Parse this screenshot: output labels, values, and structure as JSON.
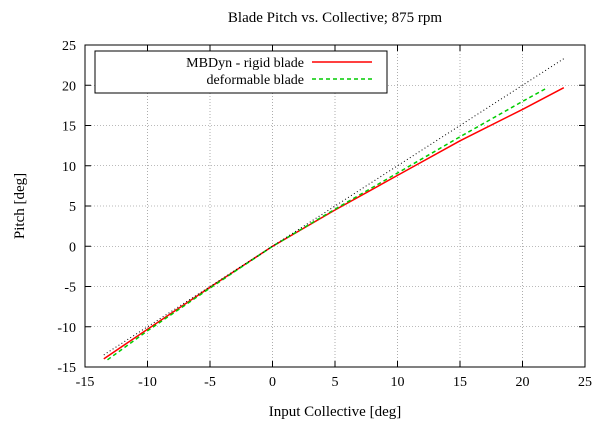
{
  "chart_data": {
    "type": "line",
    "title": "Blade Pitch vs. Collective; 875 rpm",
    "xlabel": "Input Collective [deg]",
    "ylabel": "Pitch [deg]",
    "xlim": [
      -15,
      25
    ],
    "ylim": [
      -15,
      25
    ],
    "xticks": [
      -15,
      -10,
      -5,
      0,
      5,
      10,
      15,
      20,
      25
    ],
    "yticks": [
      -15,
      -10,
      -5,
      0,
      5,
      10,
      15,
      20,
      25
    ],
    "xtick_labels": [
      "-15",
      "-10",
      "-5",
      "0",
      "5",
      "10",
      "15",
      "20",
      "25"
    ],
    "ytick_labels": [
      "-15",
      "-10",
      "-5",
      "0",
      "5",
      "10",
      "15",
      "20",
      "25"
    ],
    "grid": true,
    "legend_position": "top-left",
    "series": [
      {
        "name": "MBDyn - rigid blade",
        "color": "#ff0000",
        "style": "solid",
        "x": [
          -13.5,
          -10,
          -5,
          0,
          5,
          10,
          15,
          20,
          23.3
        ],
        "y": [
          -14.0,
          -10.3,
          -5.1,
          0,
          4.5,
          8.8,
          13.1,
          17.0,
          19.7
        ]
      },
      {
        "name": "deformable blade",
        "color": "#00cc00",
        "style": "dashed",
        "x": [
          -13.2,
          -10,
          -5,
          0,
          5,
          10,
          15,
          20,
          22.0
        ],
        "y": [
          -14.1,
          -10.5,
          -5.2,
          0,
          4.6,
          9.1,
          13.6,
          18.0,
          19.7
        ]
      },
      {
        "color": "#000000",
        "style": "dotted",
        "x": [
          -13.5,
          23.4
        ],
        "y": [
          -13.5,
          23.4
        ]
      }
    ]
  }
}
